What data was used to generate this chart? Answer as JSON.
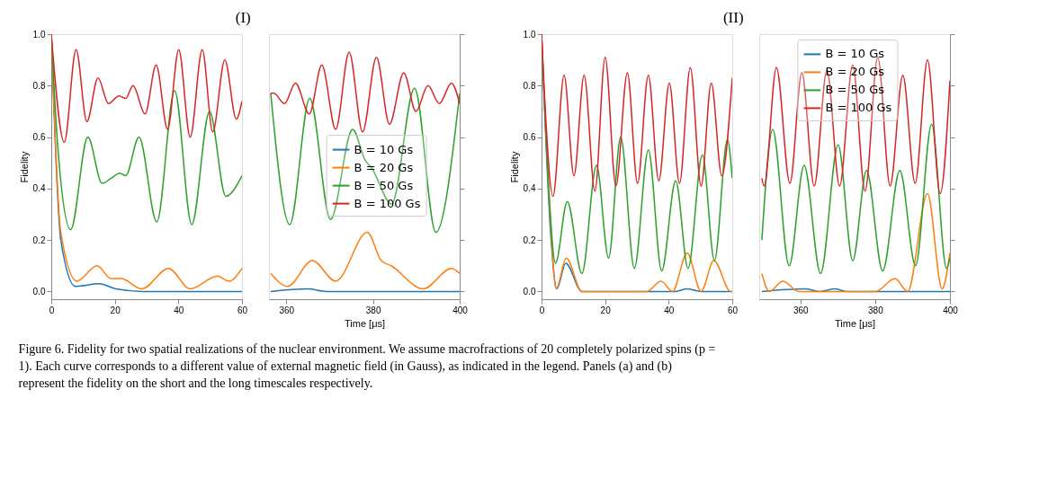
{
  "chart_data": [
    {
      "type": "line",
      "title": "(I)",
      "ylabel": "Fidelity",
      "xlim": [
        0,
        60
      ],
      "ylim": [
        -0.03,
        1.0
      ],
      "xticks": [
        0,
        20,
        40,
        60
      ],
      "yticks": [
        {
          "value": 0,
          "label": "0.0"
        },
        {
          "value": 0.2,
          "label": "0.2"
        },
        {
          "value": 0.4,
          "label": "0.4"
        },
        {
          "value": 0.6,
          "label": "0.6"
        },
        {
          "value": 0.8,
          "label": "0.8"
        },
        {
          "value": 1.0,
          "label": "1.0"
        }
      ],
      "annotations": [
        "Figure 6.  Fidelity for two spatial realizations of the nuclear environment. We assume macrofractions of 20 completely polarized spins (p = 1). Each curve corresponds to a different value of external magnetic field (in Gauss), as indicated in the legend. Panels (a) and (b) represent the fidelity on the short and the long timescales respectively."
      ],
      "grid": false,
      "line_style": "solid",
      "marker": "none",
      "series": [
        {
          "color": "#1f77b4",
          "x": [
            0,
            3.0,
            7.6,
            15.2,
            20.3,
            29.0,
            60
          ],
          "values": [
            1.0,
            0.2,
            0.02,
            0.03,
            0.01,
            0.0,
            0.0
          ]
        },
        {
          "color": "#ff7f0e",
          "x": [
            0,
            3.0,
            8.1,
            14.4,
            18.8,
            22.0,
            28.5,
            36.9,
            43.7,
            52.3,
            55.9,
            60
          ],
          "values": [
            1.0,
            0.23,
            0.04,
            0.1,
            0.05,
            0.05,
            0.01,
            0.09,
            0.01,
            0.06,
            0.04,
            0.09
          ]
        },
        {
          "color": "#2ca02c",
          "x": [
            0,
            2.0,
            6.1,
            11.5,
            16.0,
            18.8,
            21.6,
            23.4,
            27.6,
            33.2,
            38.8,
            44.2,
            49.8,
            54.9,
            60
          ],
          "values": [
            1.0,
            0.57,
            0.24,
            0.6,
            0.42,
            0.44,
            0.46,
            0.45,
            0.6,
            0.27,
            0.78,
            0.26,
            0.7,
            0.37,
            0.45
          ]
        },
        {
          "color": "#d62728",
          "x": [
            0,
            4.1,
            7.8,
            11.2,
            14.7,
            18.0,
            21.3,
            23.4,
            25.7,
            29.5,
            33.0,
            36.6,
            40.1,
            43.7,
            47.5,
            50.8,
            54.6,
            58.2,
            60
          ],
          "values": [
            1.0,
            0.58,
            0.94,
            0.66,
            0.83,
            0.73,
            0.76,
            0.75,
            0.8,
            0.69,
            0.88,
            0.63,
            0.94,
            0.6,
            0.94,
            0.62,
            0.9,
            0.67,
            0.74
          ]
        }
      ]
    },
    {
      "type": "line",
      "xlabel": "Time [μs]",
      "xlim": [
        356,
        400
      ],
      "ylim": [
        -0.03,
        1.0
      ],
      "xticks": [
        360,
        380,
        400
      ],
      "yticks": [
        {
          "value": 0,
          "label": null
        },
        {
          "value": 0.2,
          "label": null
        },
        {
          "value": 0.4,
          "label": null
        },
        {
          "value": 0.6,
          "label": null
        },
        {
          "value": 0.8,
          "label": null
        },
        {
          "value": 1.0,
          "label": null
        }
      ],
      "tick_labels": "x",
      "grid": false,
      "legend": "center",
      "line_style": "solid",
      "marker": "none",
      "series": [
        {
          "name": "B = 10 Gs",
          "color": "#1f77b4",
          "x": [
            356.4,
            364.9,
            369.3,
            400
          ],
          "values": [
            0.0,
            0.01,
            0.0,
            0.0
          ]
        },
        {
          "name": "B = 20 Gs",
          "color": "#ff7f0e",
          "x": [
            356.4,
            360.3,
            366.0,
            371.4,
            378.7,
            381.9,
            384.2,
            391.6,
            398.1,
            400
          ],
          "values": [
            0.07,
            0.02,
            0.12,
            0.04,
            0.23,
            0.12,
            0.1,
            0.01,
            0.09,
            0.07
          ]
        },
        {
          "name": "B = 50 Gs",
          "color": "#2ca02c",
          "x": [
            356.4,
            360.8,
            365.4,
            370.2,
            375.3,
            378.2,
            379.7,
            384.3,
            389.6,
            394.5,
            400
          ],
          "values": [
            0.77,
            0.26,
            0.75,
            0.28,
            0.63,
            0.51,
            0.48,
            0.34,
            0.79,
            0.23,
            0.77
          ]
        },
        {
          "name": "B = 100 Gs",
          "color": "#d62728",
          "x": [
            356.4,
            357.1,
            359.6,
            362.1,
            365.3,
            368.2,
            371.4,
            374.5,
            377.6,
            380.8,
            383.8,
            387.1,
            389.9,
            392.7,
            395.3,
            398.1,
            400
          ],
          "values": [
            0.77,
            0.77,
            0.73,
            0.81,
            0.69,
            0.88,
            0.63,
            0.93,
            0.62,
            0.91,
            0.65,
            0.85,
            0.7,
            0.8,
            0.73,
            0.81,
            0.73
          ]
        }
      ]
    },
    {
      "type": "line",
      "title": "(II)",
      "ylabel": "Fidelity",
      "xlim": [
        0,
        60
      ],
      "ylim": [
        -0.03,
        1.0
      ],
      "xticks": [
        0,
        20,
        40,
        60
      ],
      "yticks": [
        {
          "value": 0,
          "label": "0.0"
        },
        {
          "value": 0.2,
          "label": "0.2"
        },
        {
          "value": 0.4,
          "label": "0.4"
        },
        {
          "value": 0.6,
          "label": "0.6"
        },
        {
          "value": 0.8,
          "label": "0.8"
        },
        {
          "value": 1.0,
          "label": "1.0"
        }
      ],
      "grid": false,
      "line_style": "solid",
      "marker": "none",
      "series": [
        {
          "color": "#1f77b4",
          "x": [
            0,
            3.0,
            4.8,
            7.6,
            12.7,
            42.0,
            45.8,
            50.2,
            60
          ],
          "values": [
            1.0,
            0.2,
            0.01,
            0.11,
            0.0,
            0.0,
            0.01,
            0.0,
            0.0
          ]
        },
        {
          "color": "#ff7f0e",
          "x": [
            0,
            3.0,
            4.6,
            7.8,
            12.7,
            33.1,
            37.6,
            41.2,
            45.8,
            50.2,
            54.2,
            59.5,
            60
          ],
          "values": [
            1.0,
            0.23,
            0.01,
            0.13,
            0.0,
            0.0,
            0.04,
            0.0,
            0.15,
            0.0,
            0.12,
            0.0,
            0.0
          ]
        },
        {
          "color": "#2ca02c",
          "x": [
            0,
            2.0,
            4.4,
            8.1,
            12.7,
            17.3,
            21.1,
            24.9,
            29.2,
            33.6,
            37.8,
            42.2,
            46.1,
            50.6,
            54.4,
            58.5,
            60
          ],
          "values": [
            1.0,
            0.46,
            0.11,
            0.35,
            0.07,
            0.49,
            0.13,
            0.6,
            0.09,
            0.55,
            0.08,
            0.43,
            0.09,
            0.53,
            0.12,
            0.59,
            0.44
          ]
        },
        {
          "color": "#d62728",
          "x": [
            0,
            3.6,
            7.1,
            10.2,
            13.4,
            16.8,
            20.0,
            23.4,
            27.0,
            30.2,
            33.6,
            36.9,
            40.2,
            43.4,
            46.8,
            50.2,
            53.4,
            56.7,
            60
          ],
          "values": [
            1.0,
            0.37,
            0.84,
            0.45,
            0.84,
            0.39,
            0.91,
            0.41,
            0.85,
            0.42,
            0.84,
            0.43,
            0.81,
            0.42,
            0.87,
            0.41,
            0.81,
            0.45,
            0.83
          ]
        }
      ]
    },
    {
      "type": "line",
      "xlabel": "Time [μs]",
      "xlim": [
        349,
        400
      ],
      "ylim": [
        -0.03,
        1.0
      ],
      "xticks": [
        360,
        380,
        400
      ],
      "yticks": [
        {
          "value": 0,
          "label": null
        },
        {
          "value": 0.2,
          "label": null
        },
        {
          "value": 0.4,
          "label": null
        },
        {
          "value": 0.6,
          "label": null
        },
        {
          "value": 0.8,
          "label": null
        },
        {
          "value": 1.0,
          "label": null
        }
      ],
      "tick_labels": "x",
      "grid": false,
      "legend": "top",
      "line_style": "solid",
      "marker": "none",
      "series": [
        {
          "name": "B = 10 Gs",
          "color": "#1f77b4",
          "x": [
            349.7,
            361.3,
            365.1,
            369.2,
            372.4,
            400
          ],
          "values": [
            0.0,
            0.01,
            0.0,
            0.01,
            0.0,
            0.0
          ]
        },
        {
          "name": "B = 20 Gs",
          "color": "#ff7f0e",
          "x": [
            349.7,
            351.7,
            355.3,
            359.6,
            380.1,
            385.3,
            388.7,
            394.0,
            397.9,
            400
          ],
          "values": [
            0.07,
            0.0,
            0.04,
            0.0,
            0.0,
            0.05,
            0.0,
            0.38,
            0.01,
            0.15
          ]
        },
        {
          "name": "B = 50 Gs",
          "color": "#2ca02c",
          "x": [
            349.7,
            352.6,
            357.0,
            361.0,
            365.4,
            370.1,
            374.0,
            377.7,
            382.0,
            386.6,
            390.8,
            395.1,
            399.1,
            400
          ],
          "values": [
            0.2,
            0.63,
            0.1,
            0.49,
            0.07,
            0.57,
            0.12,
            0.47,
            0.08,
            0.47,
            0.1,
            0.65,
            0.09,
            0.13
          ]
        },
        {
          "name": "B = 100 Gs",
          "color": "#d62728",
          "x": [
            349.7,
            350.3,
            353.6,
            357.2,
            360.4,
            363.7,
            367.1,
            370.5,
            374.0,
            377.3,
            380.7,
            384.0,
            387.4,
            390.7,
            394.0,
            397.4,
            400
          ],
          "values": [
            0.44,
            0.41,
            0.87,
            0.42,
            0.85,
            0.41,
            0.86,
            0.41,
            0.88,
            0.39,
            0.91,
            0.41,
            0.84,
            0.42,
            0.9,
            0.38,
            0.82
          ]
        }
      ]
    }
  ]
}
